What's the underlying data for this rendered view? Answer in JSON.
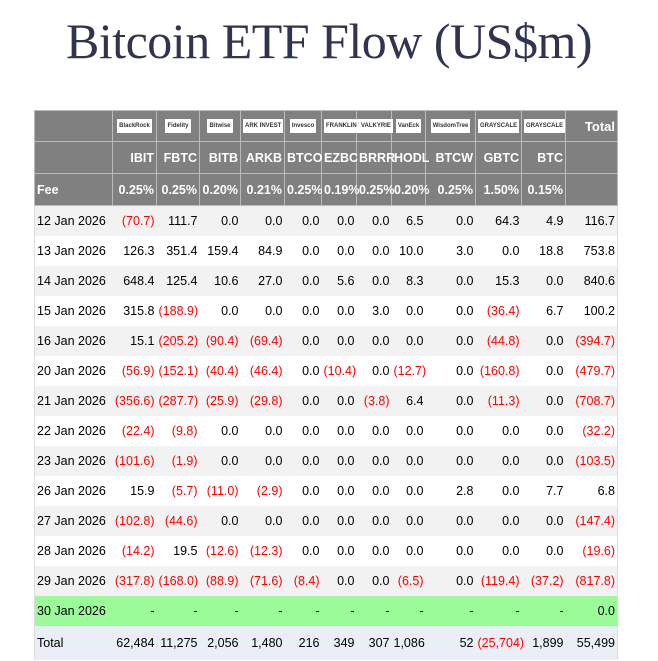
{
  "title": "Bitcoin ETF Flow (US$m)",
  "issuers": [
    "BlackRock",
    "Fidelity",
    "Bitwise",
    "ARK INVEST",
    "Invesco",
    "FRANKLIN TEMPLETON",
    "VALKYRIE",
    "VanEck",
    "WisdomTree",
    "GRAYSCALE",
    "GRAYSCALE"
  ],
  "total_label": "Total",
  "tickers": [
    "IBIT",
    "FBTC",
    "BITB",
    "ARKB",
    "BTCO",
    "EZBC",
    "BRRR",
    "HODL",
    "BTCW",
    "GBTC",
    "BTC"
  ],
  "fee_label": "Fee",
  "fees": [
    "0.25%",
    "0.25%",
    "0.20%",
    "0.21%",
    "0.25%",
    "0.19%",
    "0.25%",
    "0.20%",
    "0.25%",
    "1.50%",
    "0.15%"
  ],
  "rows": [
    {
      "date": "12 Jan 2026",
      "values": [
        "(70.7)",
        "111.7",
        "0.0",
        "0.0",
        "0.0",
        "0.0",
        "0.0",
        "6.5",
        "0.0",
        "64.3",
        "4.9",
        "116.7"
      ]
    },
    {
      "date": "13 Jan 2026",
      "values": [
        "126.3",
        "351.4",
        "159.4",
        "84.9",
        "0.0",
        "0.0",
        "0.0",
        "10.0",
        "3.0",
        "0.0",
        "18.8",
        "753.8"
      ]
    },
    {
      "date": "14 Jan 2026",
      "values": [
        "648.4",
        "125.4",
        "10.6",
        "27.0",
        "0.0",
        "5.6",
        "0.0",
        "8.3",
        "0.0",
        "15.3",
        "0.0",
        "840.6"
      ]
    },
    {
      "date": "15 Jan 2026",
      "values": [
        "315.8",
        "(188.9)",
        "0.0",
        "0.0",
        "0.0",
        "0.0",
        "3.0",
        "0.0",
        "0.0",
        "(36.4)",
        "6.7",
        "100.2"
      ]
    },
    {
      "date": "16 Jan 2026",
      "values": [
        "15.1",
        "(205.2)",
        "(90.4)",
        "(69.4)",
        "0.0",
        "0.0",
        "0.0",
        "0.0",
        "0.0",
        "(44.8)",
        "0.0",
        "(394.7)"
      ]
    },
    {
      "date": "20 Jan 2026",
      "values": [
        "(56.9)",
        "(152.1)",
        "(40.4)",
        "(46.4)",
        "0.0",
        "(10.4)",
        "0.0",
        "(12.7)",
        "0.0",
        "(160.8)",
        "0.0",
        "(479.7)"
      ]
    },
    {
      "date": "21 Jan 2026",
      "values": [
        "(356.6)",
        "(287.7)",
        "(25.9)",
        "(29.8)",
        "0.0",
        "0.0",
        "(3.8)",
        "6.4",
        "0.0",
        "(11.3)",
        "0.0",
        "(708.7)"
      ]
    },
    {
      "date": "22 Jan 2026",
      "values": [
        "(22.4)",
        "(9.8)",
        "0.0",
        "0.0",
        "0.0",
        "0.0",
        "0.0",
        "0.0",
        "0.0",
        "0.0",
        "0.0",
        "(32.2)"
      ]
    },
    {
      "date": "23 Jan 2026",
      "values": [
        "(101.6)",
        "(1.9)",
        "0.0",
        "0.0",
        "0.0",
        "0.0",
        "0.0",
        "0.0",
        "0.0",
        "0.0",
        "0.0",
        "(103.5)"
      ]
    },
    {
      "date": "26 Jan 2026",
      "values": [
        "15.9",
        "(5.7)",
        "(11.0)",
        "(2.9)",
        "0.0",
        "0.0",
        "0.0",
        "0.0",
        "2.8",
        "0.0",
        "7.7",
        "6.8"
      ]
    },
    {
      "date": "27 Jan 2026",
      "values": [
        "(102.8)",
        "(44.6)",
        "0.0",
        "0.0",
        "0.0",
        "0.0",
        "0.0",
        "0.0",
        "0.0",
        "0.0",
        "0.0",
        "(147.4)"
      ]
    },
    {
      "date": "28 Jan 2026",
      "values": [
        "(14.2)",
        "19.5",
        "(12.6)",
        "(12.3)",
        "0.0",
        "0.0",
        "0.0",
        "0.0",
        "0.0",
        "0.0",
        "0.0",
        "(19.6)"
      ]
    },
    {
      "date": "29 Jan 2026",
      "values": [
        "(317.8)",
        "(168.0)",
        "(88.9)",
        "(71.6)",
        "(8.4)",
        "0.0",
        "0.0",
        "(6.5)",
        "0.0",
        "(119.4)",
        "(37.2)",
        "(817.8)"
      ]
    }
  ],
  "pending_row": {
    "date": "30 Jan 2026",
    "values": [
      "-",
      "-",
      "-",
      "-",
      "-",
      "-",
      "-",
      "-",
      "-",
      "-",
      "-",
      "0.0"
    ]
  },
  "total_row": {
    "label": "Total",
    "values": [
      "62,484",
      "11,275",
      "2,056",
      "1,480",
      "216",
      "349",
      "307",
      "1,086",
      "52",
      "(25,704)",
      "1,899",
      "55,499"
    ]
  },
  "colors": {
    "header_bg": "#808080",
    "negative": "#ff0000",
    "pending_bg": "#9afc98",
    "total_bg": "#e9eef7"
  }
}
